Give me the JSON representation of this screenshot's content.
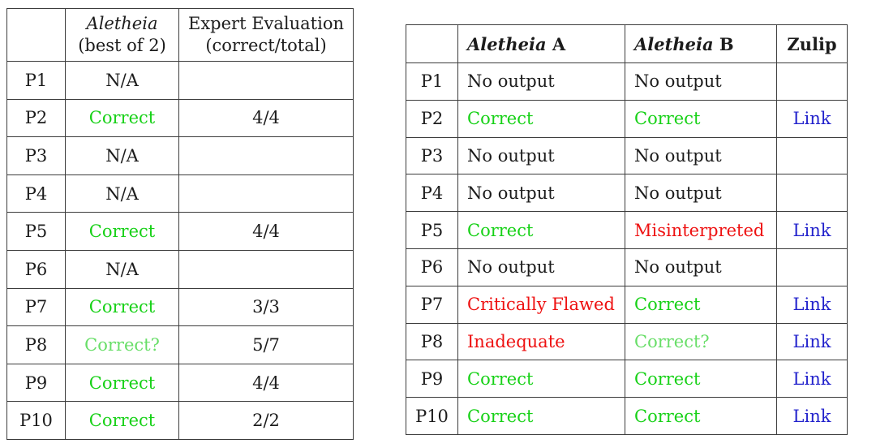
{
  "colors": {
    "black": "#1c1c1c",
    "green": "#17d117",
    "light_green": "#68de68",
    "red": "#ee1111",
    "blue": "#2222cc",
    "border": "#3c3c3c"
  },
  "left_table": {
    "header": {
      "corner": "",
      "tool_name": "Aletheia",
      "tool_sub": "(best of 2)",
      "eval_line1": "Expert Evaluation",
      "eval_line2": "(correct/total)"
    },
    "rows": [
      {
        "id": "P1",
        "result": "N/A",
        "result_color": "black",
        "eval": ""
      },
      {
        "id": "P2",
        "result": "Correct",
        "result_color": "green",
        "eval": "4/4"
      },
      {
        "id": "P3",
        "result": "N/A",
        "result_color": "black",
        "eval": ""
      },
      {
        "id": "P4",
        "result": "N/A",
        "result_color": "black",
        "eval": ""
      },
      {
        "id": "P5",
        "result": "Correct",
        "result_color": "green",
        "eval": "4/4"
      },
      {
        "id": "P6",
        "result": "N/A",
        "result_color": "black",
        "eval": ""
      },
      {
        "id": "P7",
        "result": "Correct",
        "result_color": "green",
        "eval": "3/3"
      },
      {
        "id": "P8",
        "result": "Correct?",
        "result_color": "light_green",
        "eval": "5/7"
      },
      {
        "id": "P9",
        "result": "Correct",
        "result_color": "green",
        "eval": "4/4"
      },
      {
        "id": "P10",
        "result": "Correct",
        "result_color": "green",
        "eval": "2/2"
      }
    ]
  },
  "right_table": {
    "header": {
      "corner": "",
      "tool_name": "Aletheia",
      "suffix_a": " A",
      "suffix_b": " B",
      "zulip": "Zulip"
    },
    "rows": [
      {
        "id": "P1",
        "a": "No output",
        "a_color": "black",
        "b": "No output",
        "b_color": "black",
        "link": ""
      },
      {
        "id": "P2",
        "a": "Correct",
        "a_color": "green",
        "b": "Correct",
        "b_color": "green",
        "link": "Link"
      },
      {
        "id": "P3",
        "a": "No output",
        "a_color": "black",
        "b": "No output",
        "b_color": "black",
        "link": ""
      },
      {
        "id": "P4",
        "a": "No output",
        "a_color": "black",
        "b": "No output",
        "b_color": "black",
        "link": ""
      },
      {
        "id": "P5",
        "a": "Correct",
        "a_color": "green",
        "b": "Misinterpreted",
        "b_color": "red",
        "link": "Link"
      },
      {
        "id": "P6",
        "a": "No output",
        "a_color": "black",
        "b": "No output",
        "b_color": "black",
        "link": ""
      },
      {
        "id": "P7",
        "a": "Critically Flawed",
        "a_color": "red",
        "b": "Correct",
        "b_color": "green",
        "link": "Link"
      },
      {
        "id": "P8",
        "a": "Inadequate",
        "a_color": "red",
        "b": "Correct?",
        "b_color": "light_green",
        "link": "Link"
      },
      {
        "id": "P9",
        "a": "Correct",
        "a_color": "green",
        "b": "Correct",
        "b_color": "green",
        "link": "Link"
      },
      {
        "id": "P10",
        "a": "Correct",
        "a_color": "green",
        "b": "Correct",
        "b_color": "green",
        "link": "Link"
      }
    ]
  }
}
